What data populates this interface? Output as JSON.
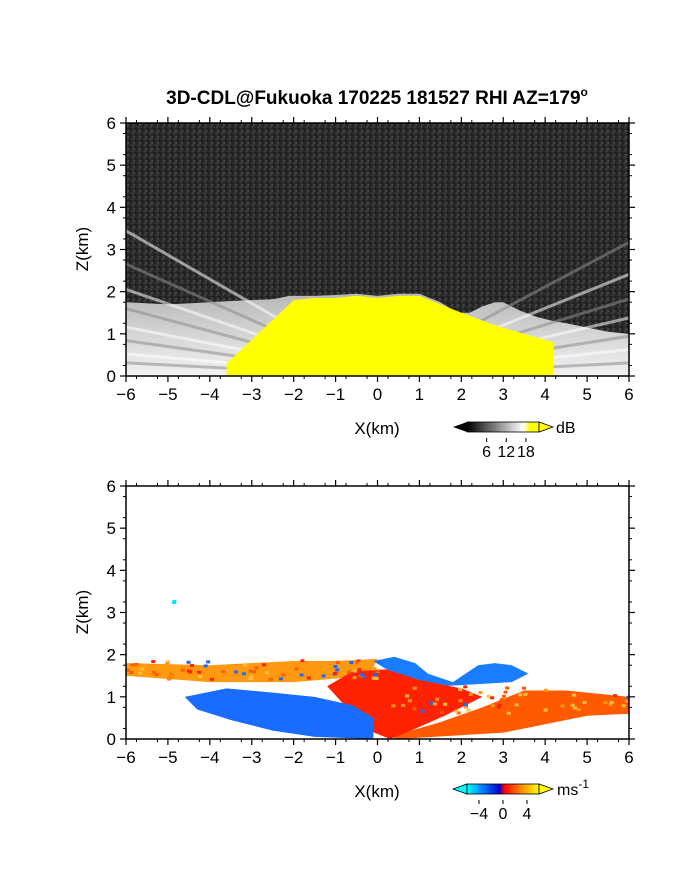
{
  "chart_data": [
    {
      "type": "heatmap",
      "title": "3D-CDL@Fukuoka 170225 181527 RHI AZ=179",
      "title_superscript": "o",
      "xlabel": "X(km)",
      "ylabel": "Z(km)",
      "xlim": [
        -6,
        6
      ],
      "ylim": [
        0,
        6
      ],
      "x_ticks": [
        "-6",
        "-5",
        "-4",
        "-3",
        "-2",
        "-1",
        "0",
        "1",
        "2",
        "3",
        "4",
        "5",
        "6"
      ],
      "y_ticks": [
        "0",
        "1",
        "2",
        "3",
        "4",
        "5",
        "6"
      ],
      "quantity": "backscatter intensity",
      "colorbar": {
        "unit": "dB",
        "ticks": [
          "6",
          "12",
          "18"
        ],
        "tick_values": [
          6,
          12,
          18
        ],
        "range": [
          0,
          22
        ],
        "colors": [
          "#000000",
          "#ffffff",
          "#ffff00"
        ]
      },
      "background_color": "#2a2a2a",
      "saturated_color": "#ffff00",
      "top_profile": {
        "x": [
          -6,
          -5,
          -4,
          -3.5,
          -3,
          -2.5,
          -2.1,
          -1.5,
          -1,
          -0.5,
          0,
          0.5,
          1,
          1.5,
          1.9,
          2.2,
          2.5,
          2.8,
          3,
          3.4,
          3.8,
          4.2,
          4.5,
          5,
          5.5,
          6
        ],
        "z": [
          1.75,
          1.7,
          1.75,
          1.78,
          1.8,
          1.82,
          1.9,
          1.9,
          1.92,
          1.95,
          1.9,
          1.95,
          1.95,
          1.75,
          1.5,
          1.5,
          1.65,
          1.75,
          1.75,
          1.55,
          1.4,
          1.3,
          1.25,
          1.15,
          1.05,
          1.0
        ]
      },
      "saturated_region": {
        "x": [
          -3.6,
          -2,
          -1.5,
          -1,
          -0.5,
          0,
          0.5,
          1,
          1.5,
          2,
          2.8,
          3.5,
          4.2
        ],
        "z_top": [
          0.3,
          1.8,
          1.85,
          1.85,
          1.9,
          1.85,
          1.9,
          1.9,
          1.7,
          1.5,
          1.2,
          1.0,
          0.8
        ]
      }
    },
    {
      "type": "heatmap",
      "xlabel": "X(km)",
      "ylabel": "Z(km)",
      "xlim": [
        -6,
        6
      ],
      "ylim": [
        0,
        6
      ],
      "x_ticks": [
        "-6",
        "-5",
        "-4",
        "-3",
        "-2",
        "-1",
        "0",
        "1",
        "2",
        "3",
        "4",
        "5",
        "6"
      ],
      "y_ticks": [
        "0",
        "1",
        "2",
        "3",
        "4",
        "5",
        "6"
      ],
      "quantity": "radial velocity",
      "colorbar": {
        "unit": "ms",
        "unit_exponent": "-1",
        "ticks": [
          "-4",
          "0",
          "4"
        ],
        "tick_values": [
          -4,
          0,
          4
        ],
        "range": [
          -6,
          6
        ],
        "colors": [
          "#00ffff",
          "#0066ff",
          "#0000cc",
          "#ff0000",
          "#ff8800",
          "#ffff00"
        ]
      },
      "isolated_point": {
        "x": -4.85,
        "z": 3.25,
        "value": -5.5
      },
      "regions": [
        {
          "name": "upper-left",
          "x_start": -6,
          "x_end": 0,
          "value": 3.5
        },
        {
          "name": "lower-left",
          "x_start": -4.6,
          "x_end": -0.1,
          "value": -3.5
        },
        {
          "name": "central",
          "x_start": -1.2,
          "x_end": 2.5,
          "value": 0.5
        },
        {
          "name": "upper-right",
          "x_start": -0.1,
          "x_end": 3.6,
          "value": -3.0
        },
        {
          "name": "right",
          "x_start": 0.5,
          "x_end": 6,
          "value": 1.8
        }
      ]
    }
  ]
}
